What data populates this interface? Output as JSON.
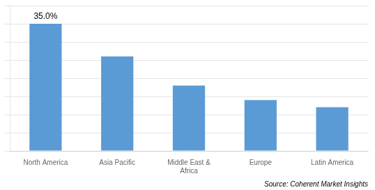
{
  "chart_data": {
    "type": "bar",
    "categories": [
      "North America",
      "Asia Pacific",
      "Middle East &\nAfrica",
      "Europe",
      "Latin America"
    ],
    "values": [
      35.0,
      26.0,
      18.0,
      14.0,
      12.0
    ],
    "color": "#5b9bd5",
    "ylim": [
      0,
      40
    ],
    "yticks": [
      0,
      5,
      10,
      15,
      20,
      25,
      30,
      35,
      40
    ],
    "grid": true,
    "tick_labels": "x",
    "annotations": [
      {
        "text": "35.0%",
        "x": "North America",
        "y": 35.0
      }
    ],
    "subtitle": "Source: Coherent Market Insights"
  }
}
